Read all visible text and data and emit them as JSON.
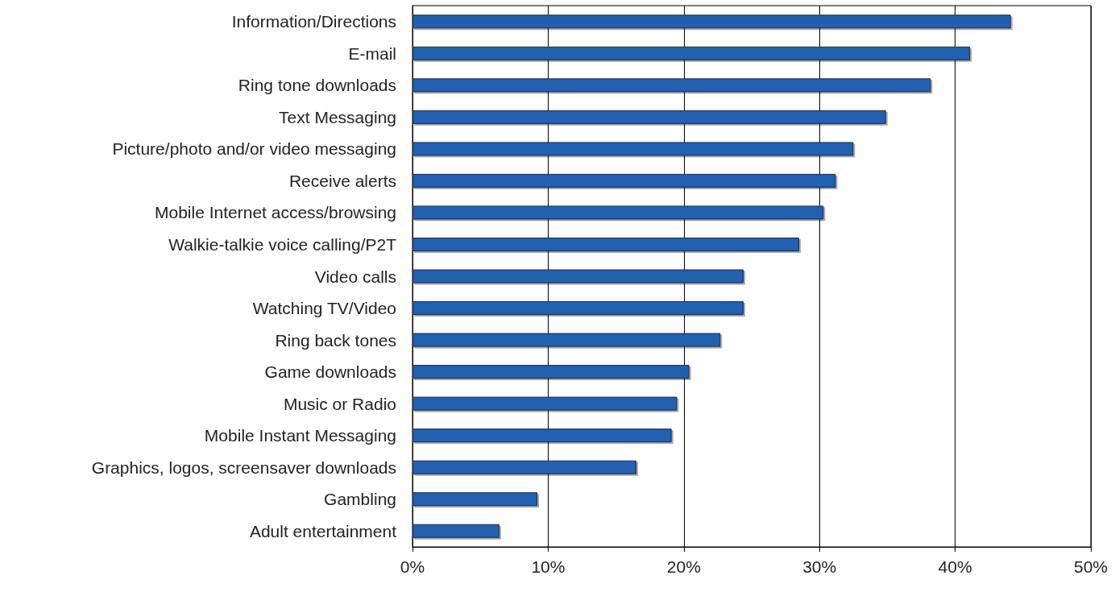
{
  "chart_data": {
    "type": "bar",
    "orientation": "horizontal",
    "categories": [
      "Information/Directions",
      "E-mail",
      "Ring tone downloads",
      "Text Messaging",
      "Picture/photo and/or video messaging",
      "Receive alerts",
      "Mobile Internet access/browsing",
      "Walkie-talkie voice calling/P2T",
      "Video calls",
      "Watching TV/Video",
      "Ring back tones",
      "Game downloads",
      "Music or Radio",
      "Mobile Instant Messaging",
      "Graphics, logos, screensaver downloads",
      "Gambling",
      "Adult entertainment"
    ],
    "values": [
      44.1,
      41.1,
      38.2,
      34.9,
      32.5,
      31.2,
      30.3,
      28.5,
      24.4,
      24.4,
      22.7,
      20.4,
      19.5,
      19.1,
      16.5,
      9.2,
      6.4
    ],
    "color": "#2060b0",
    "xlim": [
      0,
      50
    ],
    "xticks": [
      {
        "value": 0,
        "label": "0%"
      },
      {
        "value": 10,
        "label": "10%"
      },
      {
        "value": 20,
        "label": "20%"
      },
      {
        "value": 30,
        "label": "30%"
      },
      {
        "value": 40,
        "label": "40%"
      },
      {
        "value": 50,
        "label": "50%"
      }
    ],
    "grid": "x"
  }
}
